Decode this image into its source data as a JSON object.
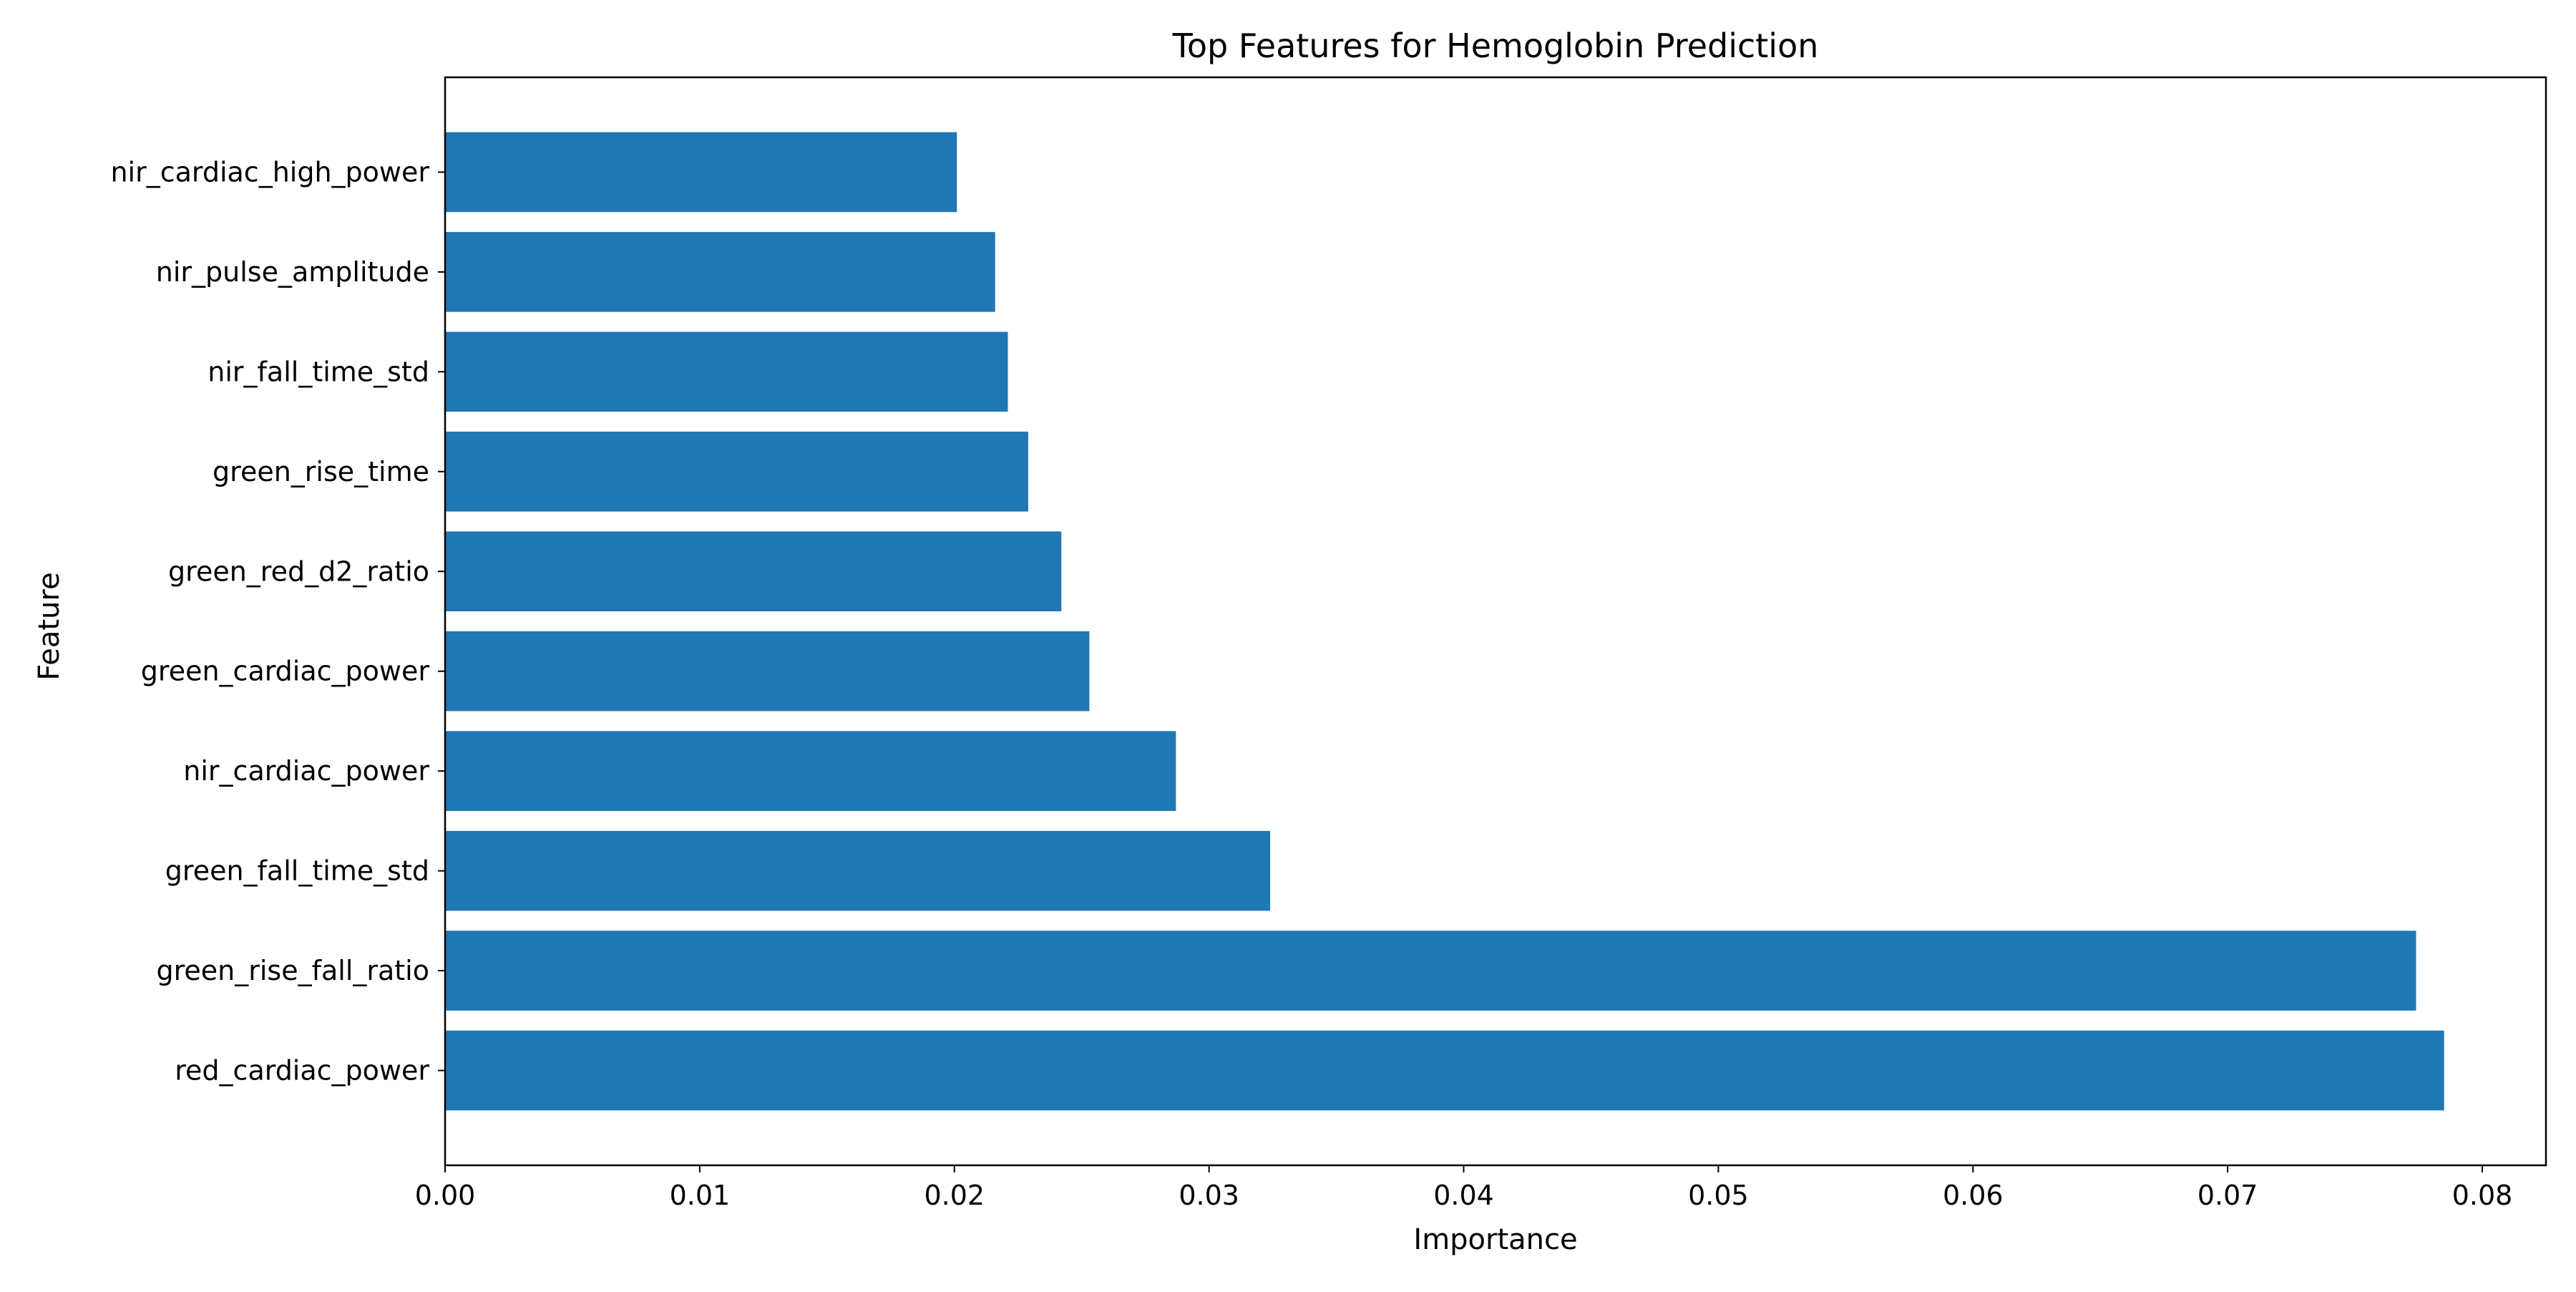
{
  "chart_data": {
    "type": "bar",
    "orientation": "horizontal",
    "title": "Top Features for Hemoglobin Prediction",
    "xlabel": "Importance",
    "ylabel": "Feature",
    "categories": [
      "red_cardiac_power",
      "green_rise_fall_ratio",
      "green_fall_time_std",
      "nir_cardiac_power",
      "green_cardiac_power",
      "green_red_d2_ratio",
      "green_rise_time",
      "nir_fall_time_std",
      "nir_pulse_amplitude",
      "nir_cardiac_high_power"
    ],
    "values": [
      0.0785,
      0.0774,
      0.0324,
      0.0287,
      0.0253,
      0.0242,
      0.0229,
      0.0221,
      0.0216,
      0.0201
    ],
    "xlim": [
      0,
      0.0825
    ],
    "xticks": [
      0.0,
      0.01,
      0.02,
      0.03,
      0.04,
      0.05,
      0.06,
      0.07,
      0.08
    ],
    "xtick_labels": [
      "0.00",
      "0.01",
      "0.02",
      "0.03",
      "0.04",
      "0.05",
      "0.06",
      "0.07",
      "0.08"
    ],
    "grid": false,
    "bar_color": "#1f77b4"
  }
}
